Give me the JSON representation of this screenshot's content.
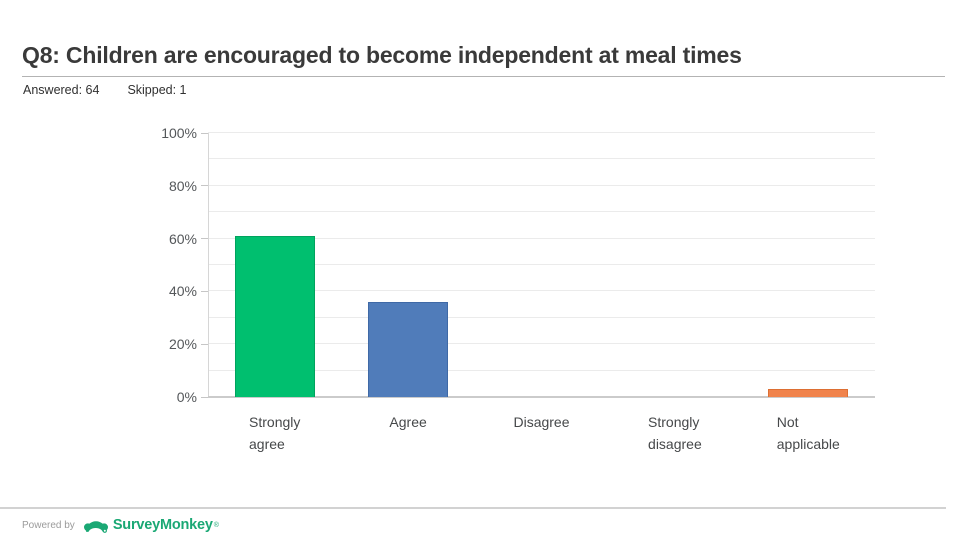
{
  "header": {
    "title": "Q8: Children are encouraged to become independent at meal times",
    "answered": "Answered: 64",
    "skipped": "Skipped: 1"
  },
  "chart_data": {
    "type": "bar",
    "title": "Q8: Children are encouraged to become independent at meal times",
    "categories": [
      "Strongly agree",
      "Agree",
      "Disagree",
      "Strongly disagree",
      "Not applicable"
    ],
    "category_labels_wrapped": [
      "Strongly\nagree",
      "Agree",
      "Disagree",
      "Strongly\ndisagree",
      "Not\napplicable"
    ],
    "values": [
      61,
      36,
      0,
      0,
      3
    ],
    "value_suffix": "%",
    "ylabel": "",
    "xlabel": "",
    "ylim": [
      0,
      100
    ],
    "y_grid_step": 10,
    "y_major_step": 20,
    "y_tick_labels": [
      "0%",
      "20%",
      "40%",
      "60%",
      "80%",
      "100%"
    ],
    "grid": true,
    "legend_position": "none",
    "bar_colors": [
      "#00bf6f",
      "#507cba",
      null,
      null,
      "#f0834c"
    ],
    "bar_border_colors": [
      "#00a35e",
      "#3f69a6",
      null,
      null,
      "#dd6f33"
    ]
  },
  "footer": {
    "powered_by": "Powered by",
    "brand": "SurveyMonkey",
    "brand_mark": "®",
    "brand_color": "#1aa874"
  }
}
